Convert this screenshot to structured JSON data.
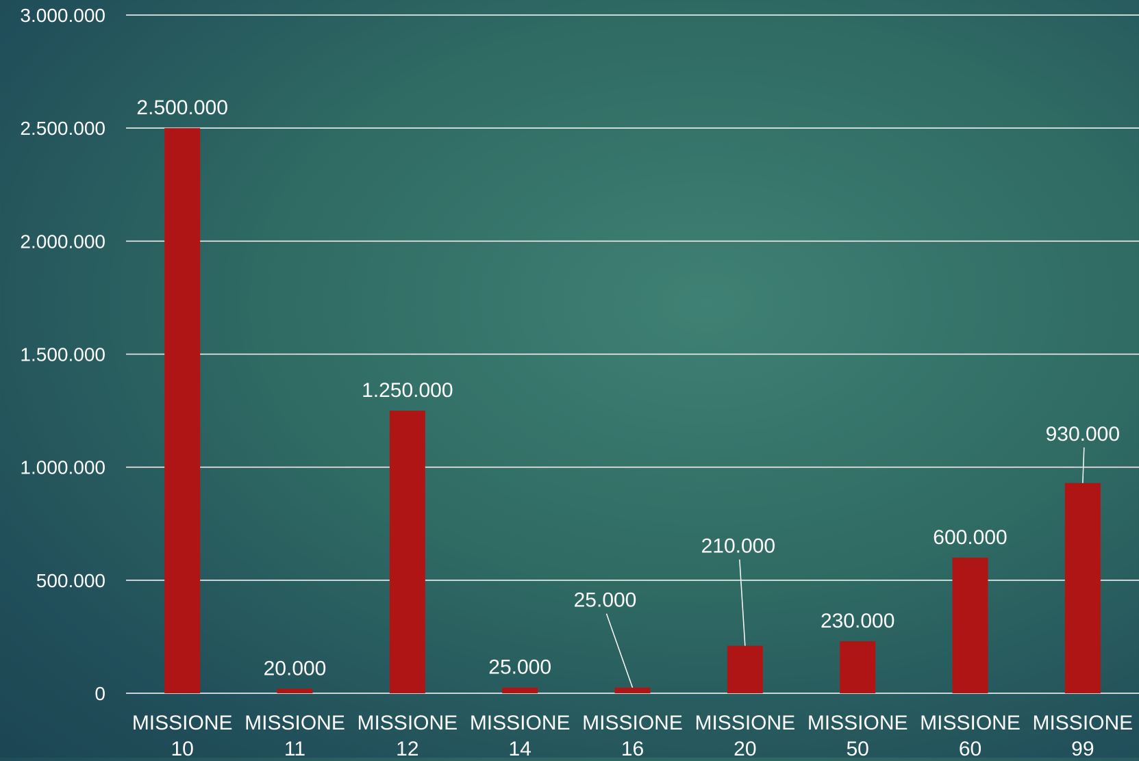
{
  "chart_data": {
    "type": "bar",
    "categories": [
      [
        "MISSIONE",
        "10"
      ],
      [
        "MISSIONE",
        "11"
      ],
      [
        "MISSIONE",
        "12"
      ],
      [
        "MISSIONE",
        "14"
      ],
      [
        "MISSIONE",
        "16"
      ],
      [
        "MISSIONE",
        "20"
      ],
      [
        "MISSIONE",
        "50"
      ],
      [
        "MISSIONE",
        "60"
      ],
      [
        "MISSIONE",
        "99"
      ]
    ],
    "values": [
      2500000,
      20000,
      1250000,
      25000,
      25000,
      210000,
      230000,
      600000,
      930000
    ],
    "value_labels": [
      "2.500.000",
      "20.000",
      "1.250.000",
      "25.000",
      "25.000",
      "210.000",
      "230.000",
      "600.000",
      "930.000"
    ],
    "ylim": [
      0,
      3000000
    ],
    "yticks": [
      0,
      500000,
      1000000,
      1500000,
      2000000,
      2500000,
      3000000
    ],
    "ytick_labels": [
      "0",
      "500.000",
      "1.000.000",
      "1.500.000",
      "2.000.000",
      "2.500.000",
      "3.000.000"
    ],
    "title": "",
    "xlabel": "",
    "ylabel": "",
    "grid": true,
    "legend": "none",
    "colors": {
      "bar": "#b01515",
      "grid": "#ffffff",
      "text": "#ffffff"
    }
  }
}
